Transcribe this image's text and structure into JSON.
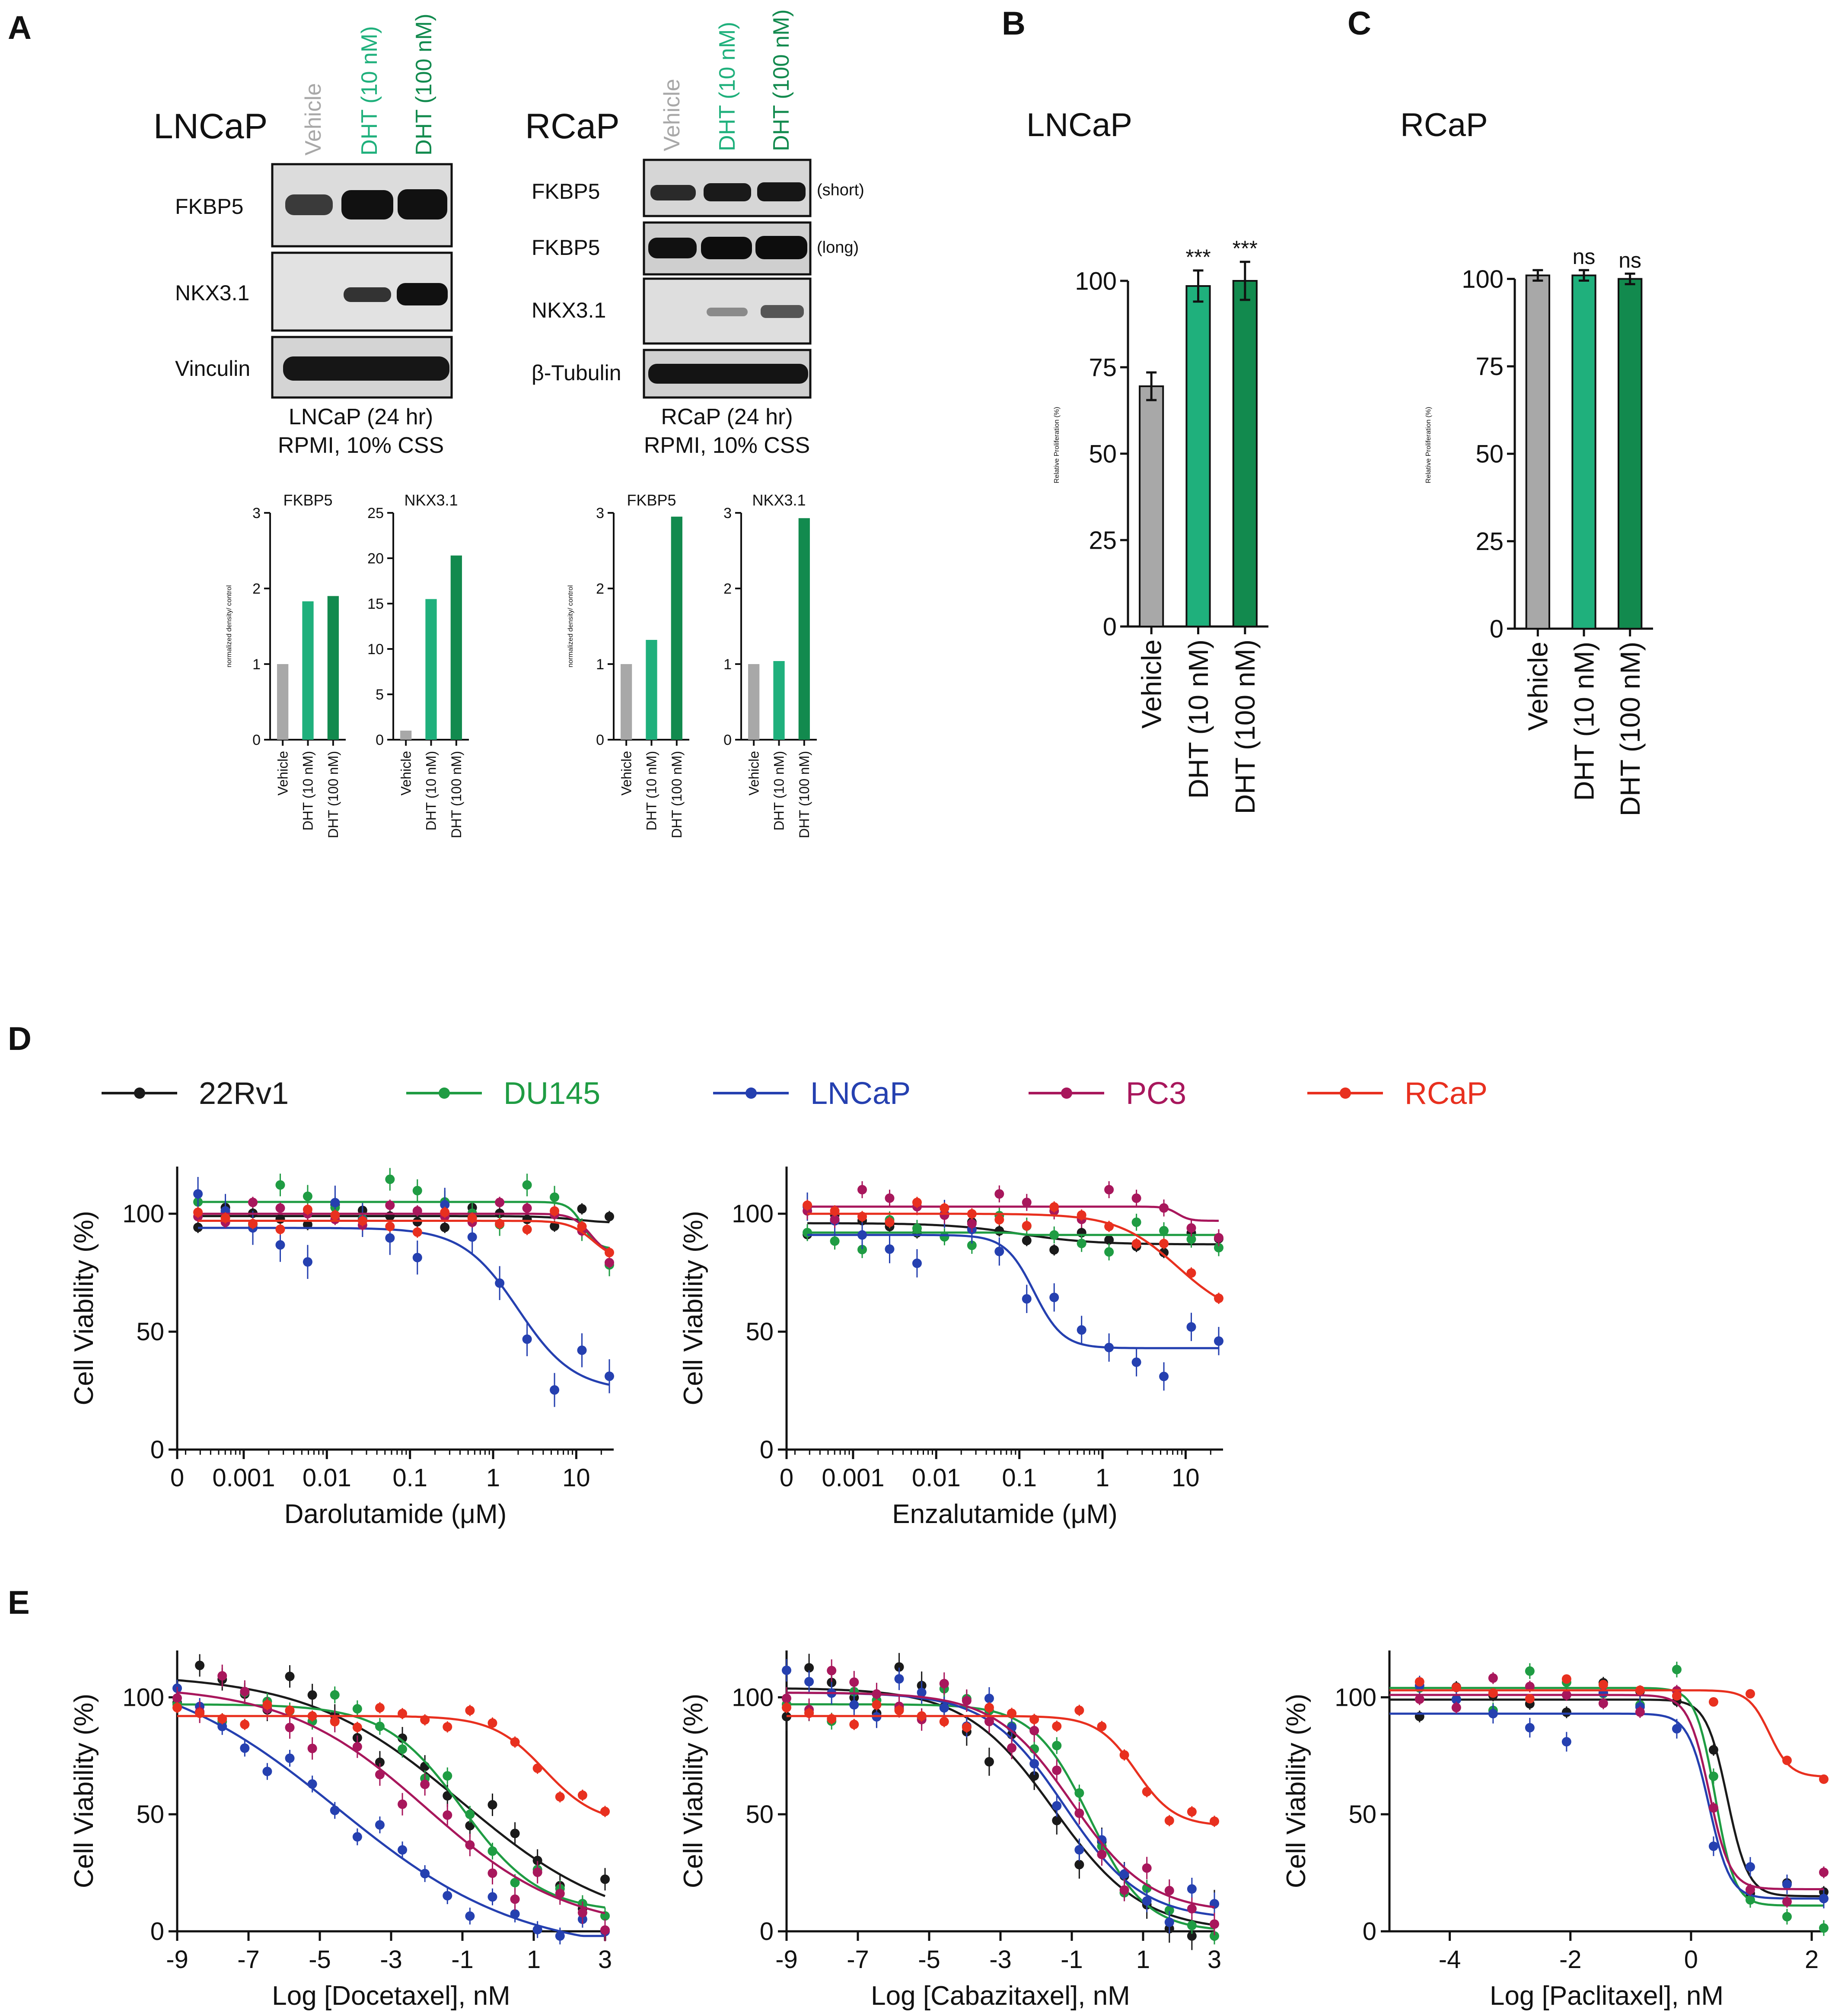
{
  "colors": {
    "vehicle": "#a8a8a8",
    "dht10": "#1fb07c",
    "dht100": "#128a4e",
    "c22Rv1": "#1a1a1a",
    "DU145": "#1f9c43",
    "LNCaP": "#2540b0",
    "PC3": "#a8175c",
    "RCaP": "#e8301f"
  },
  "panel_letters": {
    "A": "A",
    "B": "B",
    "C": "C",
    "D": "D",
    "E": "E"
  },
  "blots": {
    "lncap": {
      "title": "LNCaP",
      "lanes": [
        "Vehicle",
        "DHT (10 nM)",
        "DHT (100 nM)"
      ],
      "rows": [
        "FKBP5",
        "NKX3.1",
        "Vinculin"
      ],
      "caption1": "LNCaP (24 hr)",
      "caption2": "RPMI, 10% CSS"
    },
    "rcap": {
      "title": "RCaP",
      "lanes": [
        "Vehicle",
        "DHT (10 nM)",
        "DHT (100 nM)"
      ],
      "rows": [
        "FKBP5",
        "FKBP5",
        "NKX3.1",
        "β-Tubulin"
      ],
      "row_notes": [
        "(short)",
        "(long)"
      ],
      "caption1": "RCaP (24 hr)",
      "caption2": "RPMI, 10% CSS"
    }
  },
  "chart_data": [
    {
      "id": "a1",
      "type": "bar",
      "title": "FKBP5",
      "ylabel": "normalized density/ control",
      "categories": [
        "Vehicle",
        "DHT (10 nM)",
        "DHT (100 nM)"
      ],
      "values": [
        1,
        1.83,
        1.9
      ],
      "ylim": [
        0,
        3
      ],
      "yticks": [
        0,
        1,
        2,
        3
      ]
    },
    {
      "id": "a2",
      "type": "bar",
      "title": "NKX3.1",
      "ylabel": "",
      "categories": [
        "Vehicle",
        "DHT (10 nM)",
        "DHT (100 nM)"
      ],
      "values": [
        1,
        15.5,
        20.3
      ],
      "ylim": [
        0,
        25
      ],
      "yticks": [
        0,
        5,
        10,
        15,
        20,
        25
      ]
    },
    {
      "id": "a3",
      "type": "bar",
      "title": "FKBP5",
      "ylabel": "normalized density/ control",
      "categories": [
        "Vehicle",
        "DHT (10 nM)",
        "DHT (100 nM)"
      ],
      "values": [
        1,
        1.32,
        2.95
      ],
      "ylim": [
        0,
        3
      ],
      "yticks": [
        0,
        1,
        2,
        3
      ]
    },
    {
      "id": "a4",
      "type": "bar",
      "title": "NKX3.1",
      "ylabel": "",
      "categories": [
        "Vehicle",
        "DHT (10 nM)",
        "DHT (100 nM)"
      ],
      "values": [
        1,
        1.04,
        2.93
      ],
      "ylim": [
        0,
        3
      ],
      "yticks": [
        0,
        1,
        2,
        3
      ]
    },
    {
      "id": "b",
      "type": "bar",
      "title": "LNCaP",
      "ylabel": "Relative Proliferation (%)",
      "categories": [
        "Vehicle",
        "DHT (10 nM)",
        "DHT (100 nM)"
      ],
      "values": [
        69.5,
        98.5,
        100
      ],
      "errors": [
        4,
        4.5,
        5.5
      ],
      "annotations": [
        "",
        "***",
        "***"
      ],
      "ylim": [
        0,
        100
      ],
      "yticks": [
        0,
        25,
        50,
        75,
        100
      ]
    },
    {
      "id": "c",
      "type": "bar",
      "title": "RCaP",
      "ylabel": "Relative Proliferation (%)",
      "categories": [
        "Vehicle",
        "DHT (10 nM)",
        "DHT (100 nM)"
      ],
      "values": [
        101,
        101,
        100
      ],
      "errors": [
        1.5,
        1.5,
        1.5
      ],
      "annotations": [
        "",
        "ns",
        "ns"
      ],
      "ylim": [
        0,
        100
      ],
      "yticks": [
        0,
        25,
        50,
        75,
        100
      ]
    },
    {
      "id": "d1",
      "type": "line",
      "xlabel": "Darolutamide (μM)",
      "ylabel": "Cell Viability (%)",
      "xscale": "log",
      "xtick_labels": [
        "0",
        "0.001",
        "0.01",
        "0.1",
        "1",
        "10"
      ],
      "ylim": [
        0,
        120
      ],
      "yticks": [
        0,
        50,
        100
      ],
      "series": [
        {
          "name": "22Rv1",
          "top": 99,
          "bottom": 96,
          "ec50": 10,
          "hill": 2,
          "err": 2
        },
        {
          "name": "DU145",
          "top": 105,
          "bottom": 85,
          "ec50": 12,
          "hill": 5,
          "err": 4
        },
        {
          "name": "LNCaP",
          "top": 94,
          "bottom": 25,
          "ec50": 2,
          "hill": 1.3,
          "err": 6
        },
        {
          "name": "PC3",
          "top": 100,
          "bottom": 82,
          "ec50": 15,
          "hill": 4,
          "err": 2
        },
        {
          "name": "RCaP",
          "top": 97,
          "bottom": 80,
          "ec50": 16,
          "hill": 3,
          "err": 2
        }
      ]
    },
    {
      "id": "d2",
      "type": "line",
      "xlabel": "Enzalutamide (μM)",
      "ylabel": "Cell Viability (%)",
      "xscale": "log",
      "xtick_labels": [
        "0",
        "0.001",
        "0.01",
        "0.1",
        "1",
        "10"
      ],
      "ylim": [
        0,
        120
      ],
      "yticks": [
        0,
        50,
        100
      ],
      "series": [
        {
          "name": "22Rv1",
          "top": 96,
          "bottom": 87,
          "ec50": 0.1,
          "hill": 1,
          "err": 2
        },
        {
          "name": "DU145",
          "top": 92,
          "bottom": 91,
          "ec50": 0.1,
          "hill": 8,
          "err": 3
        },
        {
          "name": "LNCaP",
          "top": 91,
          "bottom": 43,
          "ec50": 0.15,
          "hill": 2.5,
          "err": 5
        },
        {
          "name": "PC3",
          "top": 103,
          "bottom": 97,
          "ec50": 8,
          "hill": 6,
          "err": 3
        },
        {
          "name": "RCaP",
          "top": 100,
          "bottom": 55,
          "ec50": 8,
          "hill": 1.2,
          "err": 2
        }
      ]
    },
    {
      "id": "e1",
      "type": "line",
      "xlabel": "Log [Docetaxel], nM",
      "ylabel": "Cell Viability (%)",
      "xlim": [
        -9,
        3
      ],
      "xticks": [
        -9,
        -7,
        -5,
        -3,
        -1,
        1,
        3
      ],
      "ylim": [
        0,
        120
      ],
      "yticks": [
        0,
        50,
        100
      ],
      "series": [
        {
          "name": "22Rv1",
          "top": 110,
          "bottom": 0,
          "ec50": -1,
          "hill": 0.2,
          "err": 4
        },
        {
          "name": "DU145",
          "top": 97,
          "bottom": 8,
          "ec50": -1,
          "hill": 0.4,
          "err": 3
        },
        {
          "name": "LNCaP",
          "top": 115,
          "bottom": -10,
          "ec50": -4.5,
          "hill": 0.17,
          "err": 3
        },
        {
          "name": "PC3",
          "top": 105,
          "bottom": 0,
          "ec50": -2,
          "hill": 0.22,
          "err": 4
        },
        {
          "name": "RCaP",
          "top": 92,
          "bottom": 46,
          "ec50": 1.3,
          "hill": 0.6,
          "err": 2
        }
      ]
    },
    {
      "id": "e2",
      "type": "line",
      "xlabel": "Log [Cabazitaxel], nM",
      "ylabel": "Cell Viability (%)",
      "xlim": [
        -9,
        3
      ],
      "xticks": [
        -9,
        -7,
        -5,
        -3,
        -1,
        1,
        3
      ],
      "ylim": [
        0,
        120
      ],
      "yticks": [
        0,
        50,
        100
      ],
      "series": [
        {
          "name": "22Rv1",
          "top": 104,
          "bottom": 0,
          "ec50": -1.5,
          "hill": 0.35,
          "err": 5
        },
        {
          "name": "DU145",
          "top": 97,
          "bottom": 0,
          "ec50": -0.5,
          "hill": 0.55,
          "err": 3
        },
        {
          "name": "LNCaP",
          "top": 102,
          "bottom": 5,
          "ec50": -1.2,
          "hill": 0.4,
          "err": 4
        },
        {
          "name": "PC3",
          "top": 102,
          "bottom": 8,
          "ec50": -1.0,
          "hill": 0.4,
          "err": 4
        },
        {
          "name": "RCaP",
          "top": 92,
          "bottom": 45,
          "ec50": 0.8,
          "hill": 0.8,
          "err": 2
        }
      ]
    },
    {
      "id": "e3",
      "type": "line",
      "xlabel": "Log [Paclitaxel], nM",
      "ylabel": "Cell Viability (%)",
      "xlim": [
        -5,
        2.2
      ],
      "xticks": [
        -4,
        -2,
        0,
        2
      ],
      "ylim": [
        0,
        120
      ],
      "yticks": [
        0,
        50,
        100
      ],
      "series": [
        {
          "name": "22Rv1",
          "top": 99,
          "bottom": 15,
          "ec50": 0.6,
          "hill": 2.5,
          "err": 3
        },
        {
          "name": "DU145",
          "top": 104,
          "bottom": 11,
          "ec50": 0.4,
          "hill": 2.7,
          "err": 4
        },
        {
          "name": "LNCaP",
          "top": 93,
          "bottom": 14,
          "ec50": 0.3,
          "hill": 2.5,
          "err": 5
        },
        {
          "name": "PC3",
          "top": 101,
          "bottom": 18,
          "ec50": 0.3,
          "hill": 2.5,
          "err": 3
        },
        {
          "name": "RCaP",
          "top": 103,
          "bottom": 66,
          "ec50": 1.3,
          "hill": 2.5,
          "err": 2
        }
      ]
    }
  ]
}
